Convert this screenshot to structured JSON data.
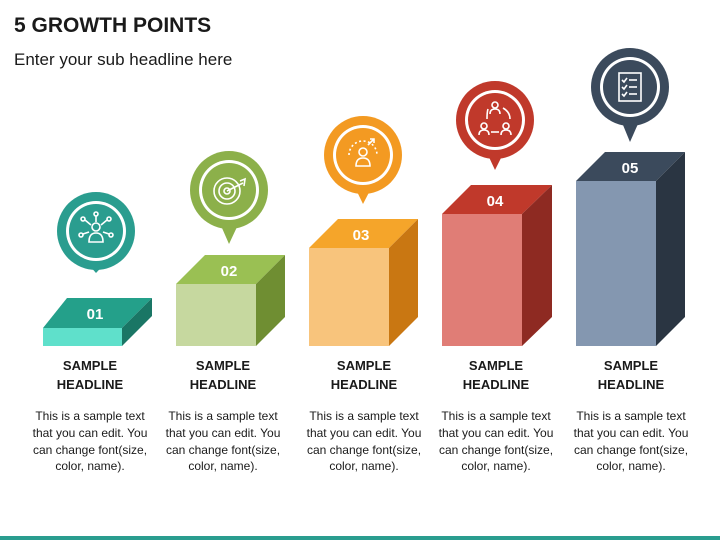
{
  "title": "5 GROWTH POINTS",
  "subtitle": "Enter your sub headline here",
  "steps": [
    {
      "number": "01",
      "headline_line1": "SAMPLE",
      "headline_line2": "HEADLINE",
      "text": "This is a sample text that you can edit. You can change font(size, color, name).",
      "icon": "people-network-icon",
      "color": "#2a9d8f"
    },
    {
      "number": "02",
      "headline_line1": "SAMPLE",
      "headline_line2": "HEADLINE",
      "text": "This is a sample text that you can edit. You can change font(size, color, name).",
      "icon": "target-arrow-icon",
      "color": "#8cb04a"
    },
    {
      "number": "03",
      "headline_line1": "SAMPLE",
      "headline_line2": "HEADLINE",
      "text": "This is a sample text that you can edit. You can change font(size, color, name).",
      "icon": "growth-person-icon",
      "color": "#f39a22"
    },
    {
      "number": "04",
      "headline_line1": "SAMPLE",
      "headline_line2": "HEADLINE",
      "text": "This is a sample text that you can edit. You can change font(size, color, name).",
      "icon": "people-cycle-icon",
      "color": "#c0392b"
    },
    {
      "number": "05",
      "headline_line1": "SAMPLE",
      "headline_line2": "HEADLINE",
      "text": "This is a sample text that you can edit. You can change font(size, color, name).",
      "icon": "checklist-icon",
      "color": "#3b4a5c"
    }
  ]
}
